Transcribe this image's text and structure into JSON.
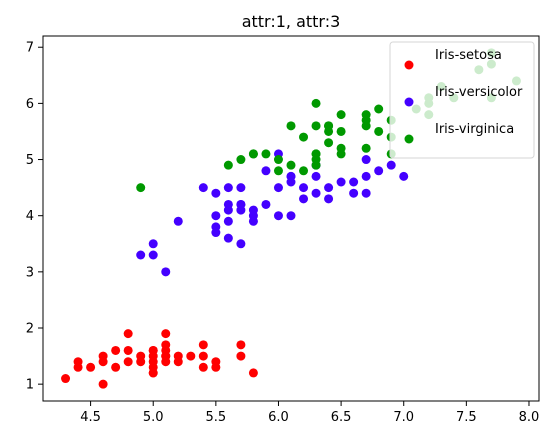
{
  "chart_data": {
    "type": "scatter",
    "title": "attr:1, attr:3",
    "xlabel": "",
    "ylabel": "",
    "xlim": [
      4.12,
      8.08
    ],
    "ylim": [
      0.7,
      7.2
    ],
    "x_ticks": [
      "4.5",
      "5.0",
      "5.5",
      "6.0",
      "6.5",
      "7.0",
      "7.5",
      "8.0"
    ],
    "y_ticks": [
      "1",
      "2",
      "3",
      "4",
      "5",
      "6",
      "7"
    ],
    "legend_position": "top-right",
    "grid": false,
    "series": [
      {
        "name": "Iris-setosa",
        "color": "#ff0000",
        "points": [
          [
            4.3,
            1.1
          ],
          [
            4.4,
            1.3
          ],
          [
            4.4,
            1.4
          ],
          [
            4.5,
            1.3
          ],
          [
            4.6,
            1.0
          ],
          [
            4.6,
            1.4
          ],
          [
            4.6,
            1.5
          ],
          [
            4.7,
            1.3
          ],
          [
            4.7,
            1.6
          ],
          [
            4.8,
            1.4
          ],
          [
            4.8,
            1.6
          ],
          [
            4.8,
            1.9
          ],
          [
            4.9,
            1.4
          ],
          [
            4.9,
            1.5
          ],
          [
            5.0,
            1.2
          ],
          [
            5.0,
            1.3
          ],
          [
            5.0,
            1.4
          ],
          [
            5.0,
            1.5
          ],
          [
            5.0,
            1.6
          ],
          [
            5.1,
            1.4
          ],
          [
            5.1,
            1.5
          ],
          [
            5.1,
            1.6
          ],
          [
            5.1,
            1.7
          ],
          [
            5.1,
            1.9
          ],
          [
            5.2,
            1.4
          ],
          [
            5.2,
            1.5
          ],
          [
            5.3,
            1.5
          ],
          [
            5.4,
            1.3
          ],
          [
            5.4,
            1.5
          ],
          [
            5.4,
            1.7
          ],
          [
            5.5,
            1.3
          ],
          [
            5.5,
            1.4
          ],
          [
            5.7,
            1.5
          ],
          [
            5.7,
            1.7
          ],
          [
            5.8,
            1.2
          ],
          [
            5.0,
            1.6
          ],
          [
            5.1,
            1.5
          ],
          [
            5.0,
            1.2
          ]
        ]
      },
      {
        "name": "Iris-versicolor",
        "color": "#4400ff",
        "points": [
          [
            4.9,
            3.3
          ],
          [
            5.0,
            3.3
          ],
          [
            5.0,
            3.5
          ],
          [
            5.1,
            3.0
          ],
          [
            5.2,
            3.9
          ],
          [
            5.4,
            4.5
          ],
          [
            5.5,
            3.7
          ],
          [
            5.5,
            3.8
          ],
          [
            5.5,
            4.0
          ],
          [
            5.5,
            4.4
          ],
          [
            5.6,
            3.6
          ],
          [
            5.6,
            3.9
          ],
          [
            5.6,
            4.1
          ],
          [
            5.6,
            4.2
          ],
          [
            5.6,
            4.5
          ],
          [
            5.7,
            3.5
          ],
          [
            5.7,
            4.1
          ],
          [
            5.7,
            4.2
          ],
          [
            5.7,
            4.5
          ],
          [
            5.8,
            3.9
          ],
          [
            5.8,
            4.0
          ],
          [
            5.8,
            4.1
          ],
          [
            5.9,
            4.2
          ],
          [
            5.9,
            4.8
          ],
          [
            6.0,
            4.0
          ],
          [
            6.0,
            4.5
          ],
          [
            6.0,
            5.1
          ],
          [
            6.1,
            4.0
          ],
          [
            6.1,
            4.6
          ],
          [
            6.1,
            4.7
          ],
          [
            6.2,
            4.3
          ],
          [
            6.2,
            4.5
          ],
          [
            6.3,
            4.4
          ],
          [
            6.3,
            4.7
          ],
          [
            6.4,
            4.3
          ],
          [
            6.4,
            4.5
          ],
          [
            6.5,
            4.6
          ],
          [
            6.6,
            4.4
          ],
          [
            6.6,
            4.6
          ],
          [
            6.7,
            4.4
          ],
          [
            6.7,
            4.7
          ],
          [
            6.7,
            5.0
          ],
          [
            6.8,
            4.8
          ],
          [
            6.9,
            4.9
          ],
          [
            7.0,
            4.7
          ],
          [
            6.3,
            4.9
          ],
          [
            6.1,
            4.7
          ],
          [
            5.7,
            4.2
          ]
        ]
      },
      {
        "name": "Iris-virginica",
        "color": "#009900",
        "points": [
          [
            4.9,
            4.5
          ],
          [
            5.6,
            4.9
          ],
          [
            5.7,
            5.0
          ],
          [
            5.8,
            5.1
          ],
          [
            5.9,
            5.1
          ],
          [
            6.0,
            4.8
          ],
          [
            6.0,
            5.0
          ],
          [
            6.1,
            4.9
          ],
          [
            6.1,
            5.6
          ],
          [
            6.2,
            4.8
          ],
          [
            6.2,
            5.4
          ],
          [
            6.3,
            4.9
          ],
          [
            6.3,
            5.0
          ],
          [
            6.3,
            5.1
          ],
          [
            6.3,
            5.6
          ],
          [
            6.3,
            6.0
          ],
          [
            6.4,
            5.3
          ],
          [
            6.4,
            5.5
          ],
          [
            6.4,
            5.6
          ],
          [
            6.5,
            5.1
          ],
          [
            6.5,
            5.2
          ],
          [
            6.5,
            5.5
          ],
          [
            6.5,
            5.8
          ],
          [
            6.7,
            5.2
          ],
          [
            6.7,
            5.6
          ],
          [
            6.7,
            5.7
          ],
          [
            6.7,
            5.8
          ],
          [
            6.8,
            5.5
          ],
          [
            6.8,
            5.9
          ],
          [
            6.9,
            5.1
          ],
          [
            6.9,
            5.4
          ],
          [
            6.9,
            5.7
          ],
          [
            7.1,
            5.9
          ],
          [
            7.2,
            5.8
          ],
          [
            7.2,
            6.0
          ],
          [
            7.2,
            6.1
          ],
          [
            7.3,
            6.3
          ],
          [
            7.4,
            6.1
          ],
          [
            7.6,
            6.6
          ],
          [
            7.7,
            6.1
          ],
          [
            7.7,
            6.7
          ],
          [
            7.7,
            6.9
          ],
          [
            7.9,
            6.4
          ],
          [
            6.4,
            5.6
          ],
          [
            5.8,
            5.1
          ],
          [
            6.3,
            5.1
          ]
        ]
      }
    ]
  }
}
